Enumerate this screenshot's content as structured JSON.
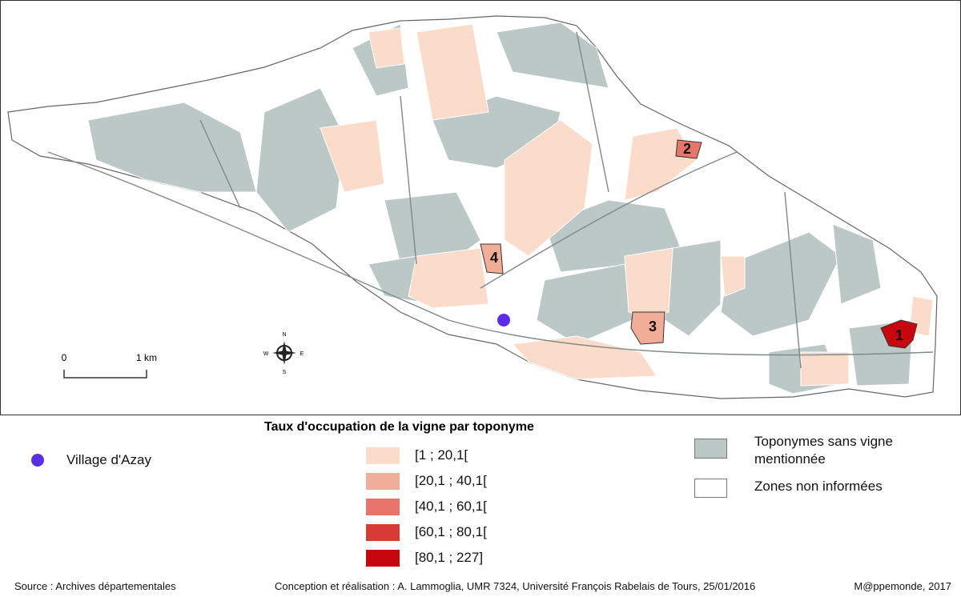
{
  "map": {
    "zones": [
      "1",
      "2",
      "3",
      "4"
    ],
    "scale": {
      "start": "0",
      "end": "1 km"
    },
    "compass": {
      "n": "N",
      "e": "E",
      "s": "S",
      "w": "W"
    }
  },
  "legend": {
    "title": "Taux d'occupation de la vigne par toponyme",
    "village": {
      "label": "Village d'Azay",
      "color": "#5a2de6"
    },
    "classes": [
      {
        "label": "[1 ; 20,1[",
        "color": "#fbdccb"
      },
      {
        "label": "[20,1 ; 40,1[",
        "color": "#f2ad98"
      },
      {
        "label": "[40,1 ; 60,1[",
        "color": "#e8756a"
      },
      {
        "label": "[60,1 ; 80,1[",
        "color": "#d83a36"
      },
      {
        "label": "[80,1 ; 227]",
        "color": "#c8060e"
      }
    ],
    "no_vine": {
      "label": "Toponymes sans vigne mentionnée",
      "color": "#bcc8c6"
    },
    "no_info": {
      "label": "Zones non informées",
      "color": "#ffffff"
    }
  },
  "footer": {
    "source": "Source :  Archives départementales",
    "credits": "Conception et réalisation : A. Lammoglia, UMR 7324, Université François Rabelais de Tours, 25/01/2016",
    "publisher": "M@ppemonde, 2017"
  }
}
